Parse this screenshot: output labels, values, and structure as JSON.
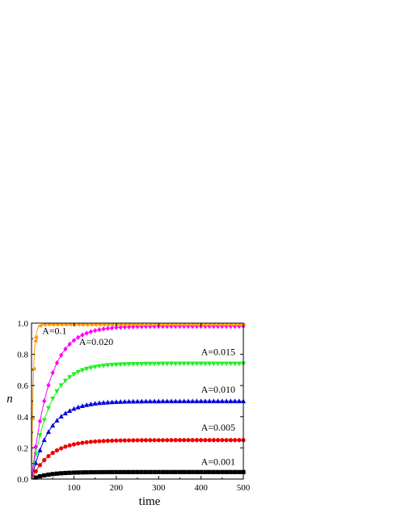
{
  "chart_data": {
    "type": "line",
    "title": "",
    "xlabel": "time",
    "ylabel": "n",
    "xlim": [
      0,
      500
    ],
    "ylim": [
      0,
      1.0
    ],
    "xticks": [
      100,
      200,
      300,
      400,
      500
    ],
    "yticks": [
      0.0,
      0.2,
      0.4,
      0.6,
      0.8,
      1.0
    ],
    "xtick_labels": [
      "100",
      "200",
      "300",
      "400",
      "500"
    ],
    "ytick_labels": [
      "0.0",
      "0.2",
      "0.4",
      "0.6",
      "0.8",
      "1.0"
    ],
    "grid": false,
    "legend": "none",
    "series": [
      {
        "label": "A=0.001",
        "plateau": 0.045,
        "tau": 40,
        "color": "#000000",
        "marker": "square"
      },
      {
        "label": "A=0.005",
        "plateau": 0.25,
        "tau": 45,
        "color": "#ee0000",
        "marker": "circle"
      },
      {
        "label": "A=0.010",
        "plateau": 0.5,
        "tau": 43,
        "color": "#0000dd",
        "marker": "triangle-up"
      },
      {
        "label": "A=0.015",
        "plateau": 0.74,
        "tau": 42,
        "color": "#22ee22",
        "marker": "triangle-down"
      },
      {
        "label": "A=0.020",
        "plateau": 0.98,
        "tau": 42,
        "color": "#ff00ff",
        "marker": "diamond"
      },
      {
        "label": "A=0.1",
        "plateau": 0.99,
        "tau": 4,
        "color": "#ff9900",
        "marker": "left-triangle"
      }
    ],
    "annotations": [
      {
        "text": "A=0.1",
        "x": 25,
        "y": 0.93
      },
      {
        "text": "A=0.020",
        "x": 112,
        "y": 0.86
      },
      {
        "text": "A=0.015",
        "x": 400,
        "y": 0.795
      },
      {
        "text": "A=0.010",
        "x": 400,
        "y": 0.555
      },
      {
        "text": "A=0.005",
        "x": 400,
        "y": 0.31
      },
      {
        "text": "A=0.001",
        "x": 400,
        "y": 0.09
      }
    ]
  }
}
